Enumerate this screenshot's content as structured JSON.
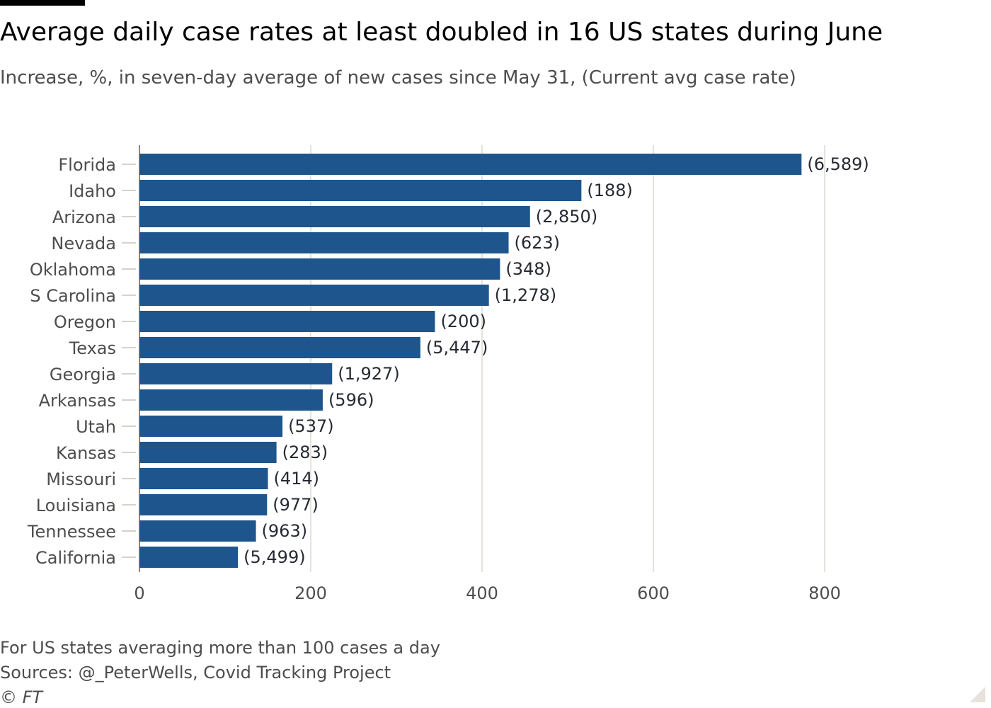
{
  "title": "Average daily case rates at least doubled in 16 US states during June",
  "subtitle": "Increase, %, in seven-day average of new cases since May 31, (Current avg case rate)",
  "footer": {
    "note": "For US states averaging more than 100 cases a day",
    "sources": "Sources: @_PeterWells, Covid Tracking Project",
    "copyright": "© FT"
  },
  "colors": {
    "bar": "#1e558c",
    "grid": "#e6e2dd",
    "text": "#4f4c4d",
    "background": "#ffffff"
  },
  "chart_data": {
    "type": "bar",
    "orientation": "horizontal",
    "categories": [
      "Florida",
      "Idaho",
      "Arizona",
      "Nevada",
      "Oklahoma",
      "S Carolina",
      "Oregon",
      "Texas",
      "Georgia",
      "Arkansas",
      "Utah",
      "Kansas",
      "Missouri",
      "Louisiana",
      "Tennessee",
      "California"
    ],
    "values": [
      773,
      516,
      456,
      431,
      421,
      408,
      345,
      328,
      225,
      214,
      167,
      160,
      150,
      149,
      136,
      115
    ],
    "data_labels": [
      "(6,589)",
      "(188)",
      "(2,850)",
      "(623)",
      "(348)",
      "(1,278)",
      "(200)",
      "(5,447)",
      "(1,927)",
      "(596)",
      "(537)",
      "(283)",
      "(414)",
      "(977)",
      "(963)",
      "(5,499)"
    ],
    "xlim": [
      0,
      800
    ],
    "xticks": [
      0,
      200,
      400,
      600,
      800
    ],
    "xtick_labels": [
      "0",
      "200",
      "400",
      "600",
      "800"
    ],
    "grid": true
  }
}
